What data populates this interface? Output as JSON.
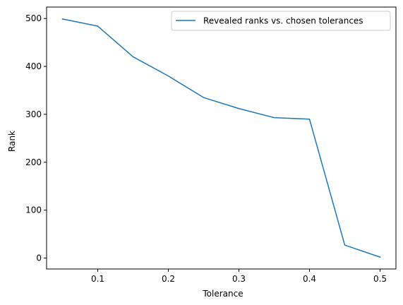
{
  "chart_data": {
    "type": "line",
    "title": "",
    "xlabel": "Tolerance",
    "ylabel": "Rank",
    "xlim": [
      0.0275,
      0.5225
    ],
    "ylim": [
      -22.85,
      523.85
    ],
    "x_ticks": [
      0.1,
      0.2,
      0.3,
      0.4,
      0.5
    ],
    "x_tick_labels": [
      "0.1",
      "0.2",
      "0.3",
      "0.4",
      "0.5"
    ],
    "y_ticks": [
      0,
      100,
      200,
      300,
      400,
      500
    ],
    "y_tick_labels": [
      "0",
      "100",
      "200",
      "300",
      "400",
      "500"
    ],
    "grid": false,
    "legend_position": "top-right",
    "series": [
      {
        "name": "Revealed ranks vs. chosen tolerances",
        "color": "#1f77b4",
        "x": [
          0.05,
          0.1,
          0.15,
          0.2,
          0.25,
          0.3,
          0.35,
          0.4,
          0.45,
          0.5
        ],
        "y": [
          499,
          484,
          420,
          380,
          335,
          312,
          293,
          290,
          27,
          2
        ]
      }
    ]
  }
}
